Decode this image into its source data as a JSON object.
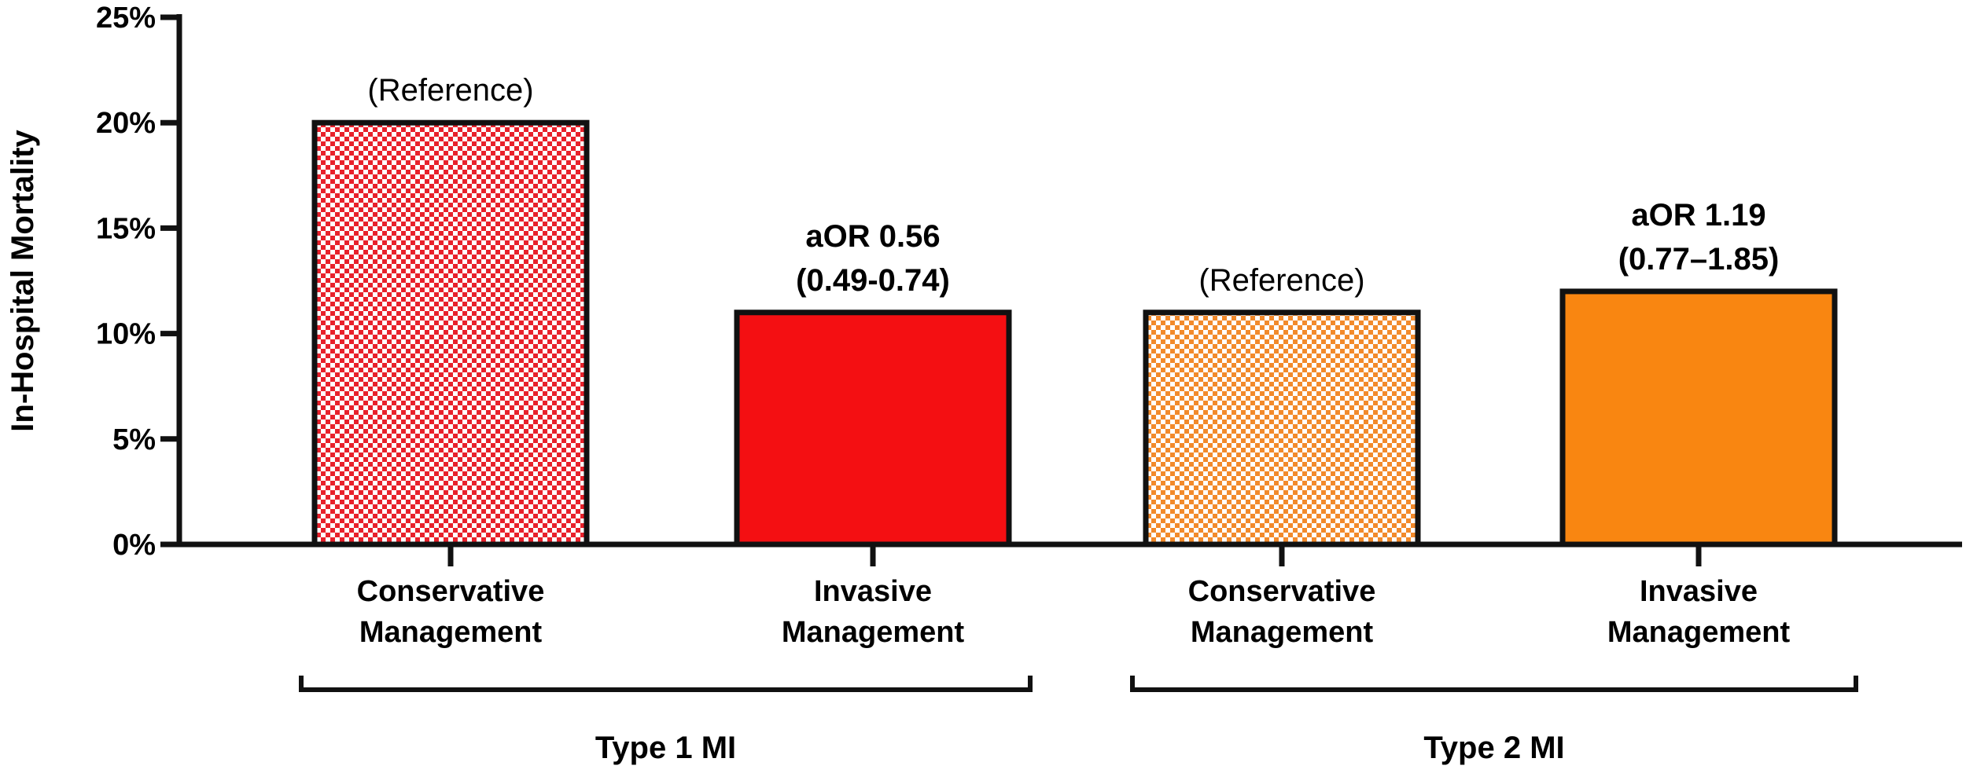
{
  "chart_data": {
    "type": "bar",
    "ylabel": "In-Hospital Mortality",
    "ylim": [
      0,
      25
    ],
    "yticks": [
      0,
      5,
      10,
      15,
      20,
      25
    ],
    "ytick_labels": [
      "0%",
      "5%",
      "10%",
      "15%",
      "20%",
      "25%"
    ],
    "categories": [
      [
        "Conservative",
        "Management"
      ],
      [
        "Invasive",
        "Management"
      ],
      [
        "Conservative",
        "Management"
      ],
      [
        "Invasive",
        "Management"
      ]
    ],
    "values": [
      20,
      11,
      11,
      12
    ],
    "bar_styles": [
      "hatched",
      "solid",
      "hatched",
      "solid"
    ],
    "colors": [
      "#e8212b",
      "#f40f12",
      "#f28a2b",
      "#f98611"
    ],
    "annotations": [
      {
        "lines": [
          "(Reference)"
        ],
        "bold": false
      },
      {
        "lines": [
          "aOR 0.56",
          "(0.49-0.74)"
        ],
        "bold": true
      },
      {
        "lines": [
          "(Reference)"
        ],
        "bold": false
      },
      {
        "lines": [
          "aOR 1.19",
          "(0.77–1.85)"
        ],
        "bold": true
      }
    ],
    "groups": [
      {
        "label": "Type 1 MI",
        "members": [
          0,
          1
        ]
      },
      {
        "label": "Type 2 MI",
        "members": [
          2,
          3
        ]
      }
    ],
    "grid": false,
    "legend": "none"
  }
}
